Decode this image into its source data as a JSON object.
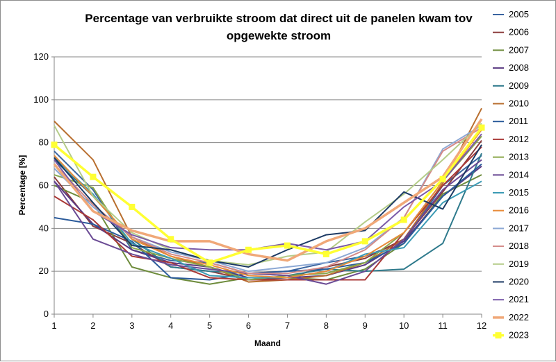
{
  "chart_data": {
    "type": "line",
    "title_line1": "Percentage van verbruikte stroom dat direct uit de panelen kwam tov",
    "title_line2": "opgewekte stroom",
    "xlabel": "Maand",
    "ylabel": "Percentage [%]",
    "x": [
      1,
      2,
      3,
      4,
      5,
      6,
      7,
      8,
      9,
      10,
      11,
      12
    ],
    "ylim": [
      0,
      120
    ],
    "yticks": [
      0,
      20,
      40,
      60,
      80,
      100,
      120
    ],
    "grid": true,
    "legend_position": "right",
    "series": [
      {
        "name": "2005",
        "color": "#3a64a0",
        "values": [
          76,
          58,
          30,
          25,
          24,
          19,
          20,
          24,
          27,
          34,
          60,
          74
        ]
      },
      {
        "name": "2006",
        "color": "#8b3a3a",
        "values": [
          64,
          41,
          33,
          22,
          20,
          16,
          17,
          22,
          26,
          35,
          57,
          81
        ]
      },
      {
        "name": "2007",
        "color": "#6e8c3c",
        "values": [
          60,
          52,
          22,
          17,
          14,
          17,
          17,
          16,
          21,
          33,
          56,
          65
        ]
      },
      {
        "name": "2008",
        "color": "#5a3a82",
        "values": [
          62,
          42,
          30,
          24,
          22,
          17,
          17,
          18,
          23,
          34,
          55,
          69
        ]
      },
      {
        "name": "2009",
        "color": "#2e7a8c",
        "values": [
          72,
          55,
          35,
          22,
          20,
          19,
          18,
          21,
          20,
          21,
          33,
          75
        ]
      },
      {
        "name": "2010",
        "color": "#b86e2e",
        "values": [
          90,
          72,
          36,
          27,
          22,
          15,
          16,
          18,
          24,
          35,
          61,
          96
        ]
      },
      {
        "name": "2011",
        "color": "#2a5a9a",
        "values": [
          45,
          42,
          34,
          17,
          16,
          19,
          20,
          21,
          24,
          33,
          55,
          70
        ]
      },
      {
        "name": "2012",
        "color": "#aa3a38",
        "values": [
          55,
          44,
          27,
          24,
          17,
          16,
          16,
          16,
          16,
          38,
          60,
          78
        ]
      },
      {
        "name": "2013",
        "color": "#8aa64a",
        "values": [
          65,
          59,
          31,
          26,
          22,
          16,
          18,
          19,
          24,
          38,
          62,
          83
        ]
      },
      {
        "name": "2014",
        "color": "#6a4a94",
        "values": [
          62,
          35,
          28,
          23,
          21,
          19,
          18,
          14,
          20,
          35,
          58,
          72
        ]
      },
      {
        "name": "2015",
        "color": "#3a9ab4",
        "values": [
          73,
          56,
          33,
          26,
          18,
          17,
          17,
          20,
          28,
          31,
          52,
          62
        ]
      },
      {
        "name": "2016",
        "color": "#e88c3a",
        "values": [
          74,
          55,
          35,
          27,
          23,
          18,
          17,
          20,
          27,
          38,
          62,
          86
        ]
      },
      {
        "name": "2017",
        "color": "#8ca8d4",
        "values": [
          68,
          50,
          36,
          29,
          25,
          20,
          22,
          24,
          31,
          45,
          77,
          88
        ]
      },
      {
        "name": "2018",
        "color": "#d48a88",
        "values": [
          70,
          51,
          36,
          28,
          24,
          19,
          19,
          22,
          30,
          45,
          76,
          87
        ]
      },
      {
        "name": "2019",
        "color": "#b4cc88",
        "values": [
          88,
          55,
          38,
          30,
          25,
          23,
          27,
          29,
          43,
          56,
          72,
          89
        ]
      },
      {
        "name": "2020",
        "color": "#1c3a64",
        "values": [
          73,
          52,
          32,
          30,
          25,
          22,
          30,
          37,
          39,
          57,
          49,
          79
        ]
      },
      {
        "name": "2021",
        "color": "#7a5aa8",
        "values": [
          72,
          48,
          37,
          31,
          30,
          30,
          33,
          30,
          34,
          50,
          62,
          84
        ]
      },
      {
        "name": "2022",
        "color": "#f0a878",
        "values": [
          70,
          48,
          39,
          34,
          34,
          28,
          25,
          34,
          40,
          52,
          64,
          91
        ]
      },
      {
        "name": "2023",
        "color": "#ffff33",
        "values": [
          79,
          64,
          50,
          35,
          24,
          30,
          32,
          28,
          34,
          44,
          63,
          87
        ]
      }
    ]
  }
}
